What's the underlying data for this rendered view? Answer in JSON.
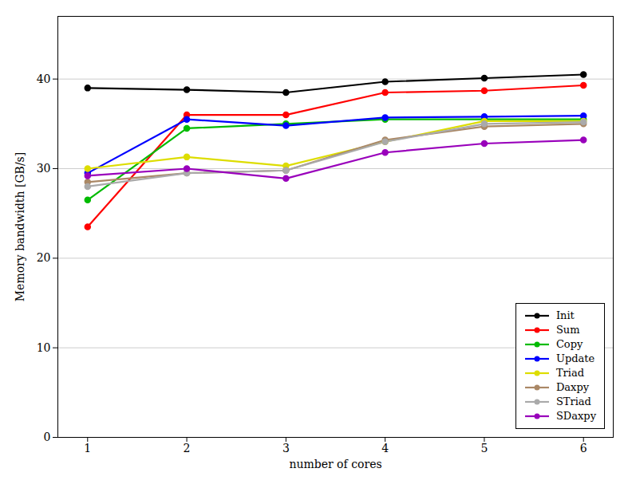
{
  "chart_data": {
    "type": "line",
    "xlabel": "number of cores",
    "ylabel": "Memory bandwidth [GB/s]",
    "x": [
      1,
      2,
      3,
      4,
      5,
      6
    ],
    "series": [
      {
        "name": "Init",
        "color": "#000000",
        "values": [
          39.0,
          38.8,
          38.5,
          39.7,
          40.1,
          40.5
        ]
      },
      {
        "name": "Sum",
        "color": "#ff0000",
        "values": [
          23.5,
          36.0,
          36.0,
          38.5,
          38.7,
          39.3
        ]
      },
      {
        "name": "Copy",
        "color": "#00bb00",
        "values": [
          26.5,
          34.5,
          35.0,
          35.5,
          35.5,
          35.5
        ]
      },
      {
        "name": "Update",
        "color": "#0000ff",
        "values": [
          29.5,
          35.5,
          34.8,
          35.7,
          35.8,
          35.9
        ]
      },
      {
        "name": "Triad",
        "color": "#dddd00",
        "values": [
          30.0,
          31.3,
          30.3,
          33.0,
          35.3,
          35.3
        ]
      },
      {
        "name": "Daxpy",
        "color": "#aa8866",
        "values": [
          28.5,
          29.5,
          29.8,
          33.2,
          34.7,
          35.0
        ]
      },
      {
        "name": "STriad",
        "color": "#aaaaaa",
        "values": [
          28.0,
          29.5,
          29.8,
          33.0,
          35.0,
          35.2
        ]
      },
      {
        "name": "SDaxpy",
        "color": "#9900bb",
        "values": [
          29.2,
          30.0,
          28.9,
          31.8,
          32.8,
          33.2
        ]
      }
    ],
    "xlim": [
      0.7,
      6.3
    ],
    "ylim": [
      0,
      47
    ],
    "xticks": [
      1,
      2,
      3,
      4,
      5,
      6
    ],
    "yticks": [
      0,
      10,
      20,
      30,
      40
    ],
    "grid": true,
    "legend": "lower right",
    "marker": "o"
  }
}
